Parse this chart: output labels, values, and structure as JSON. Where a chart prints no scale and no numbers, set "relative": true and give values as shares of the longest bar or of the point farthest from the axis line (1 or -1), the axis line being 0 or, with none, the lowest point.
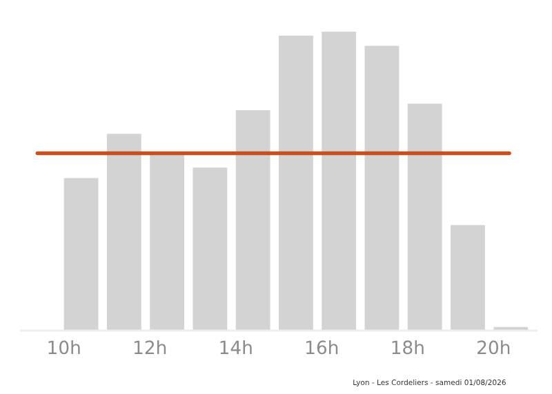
{
  "chart_data": {
    "type": "bar",
    "relative": true,
    "color": "#d3d3d3",
    "x": [
      10.4,
      11.4,
      12.4,
      13.4,
      14.4,
      15.4,
      16.4,
      17.4,
      18.4,
      19.4,
      20.4
    ],
    "values": [
      0.51,
      0.658,
      0.587,
      0.545,
      0.737,
      0.986,
      1,
      0.952,
      0.759,
      0.353,
      0.012
    ],
    "xlim": [
      9,
      21
    ],
    "xticks": [
      {
        "value": 10,
        "label": "10h"
      },
      {
        "value": 12,
        "label": "12h"
      },
      {
        "value": 14,
        "label": "14h"
      },
      {
        "value": 16,
        "label": "16h"
      },
      {
        "value": 18,
        "label": "18h"
      },
      {
        "value": 20,
        "label": "20h"
      }
    ],
    "ref_lines": [
      {
        "axis": "y",
        "value": 0.593,
        "color": "#c8501e"
      }
    ],
    "annotations": [
      "Lyon - Les Cordeliers - samedi 01/08/2026"
    ],
    "grid": false,
    "legend": false
  }
}
